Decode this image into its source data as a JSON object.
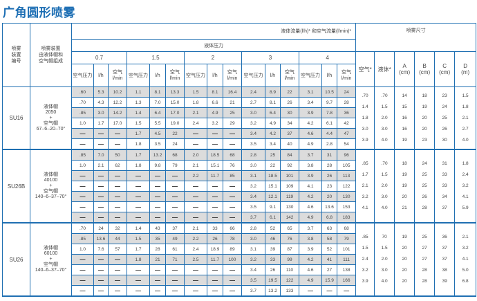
{
  "title": "广角圆形喷雾",
  "headers": {
    "model": "喷雾\n装置\n编号",
    "composition": "喷雾装置\n由液体帽和\n空气帽组成",
    "flow": "液体流量(l/h)* 和空气流量(l/min)*",
    "liquid_pressure": "液体压力",
    "pressures": [
      "0.7",
      "1.5",
      "2",
      "3",
      "4"
    ],
    "sub": [
      "空气压力",
      "l/h",
      "空气\nl/min"
    ],
    "spray_size": "喷雾尺寸",
    "size_cols": [
      "空气*",
      "液体*",
      "A\n(cm)",
      "B\n(cm)",
      "C\n(cm)",
      "D\n(m)"
    ]
  },
  "groups": [
    {
      "model": "SU16",
      "composition": [
        "液体帽",
        "2050",
        "+",
        "空气帽",
        "67–6–20–70°"
      ],
      "rows": [
        [
          ".60",
          "5.3",
          "10.2",
          "1.1",
          "8.1",
          "13.3",
          "1.5",
          "8.1",
          "16.4",
          "2.4",
          "8.9",
          "22",
          "3.1",
          "10.5",
          "24"
        ],
        [
          ".70",
          "4.3",
          "12.2",
          "1.3",
          "7.0",
          "15.0",
          "1.8",
          "6.6",
          "21",
          "2.7",
          "8.1",
          "26",
          "3.4",
          "9.7",
          "28"
        ],
        [
          ".85",
          "3.0",
          "14.2",
          "1.4",
          "6.4",
          "17.0",
          "2.1",
          "4.9",
          "25",
          "3.0",
          "6.4",
          "30",
          "3.9",
          "7.8",
          "36"
        ],
        [
          "1.0",
          "1.7",
          "17.0",
          "1.5",
          "5.5",
          "19.0",
          "2.4",
          "3.2",
          "29",
          "3.2",
          "4.9",
          "34",
          "4.2",
          "6.1",
          "42"
        ],
        [
          "—",
          "—",
          "—",
          "1.7",
          "4.5",
          "22",
          "—",
          "—",
          "—",
          "3.4",
          "4.2",
          "37",
          "4.6",
          "4.4",
          "47"
        ],
        [
          "—",
          "—",
          "—",
          "1.8",
          "3.5",
          "24",
          "—",
          "—",
          "—",
          "3.5",
          "3.4",
          "40",
          "4.9",
          "2.8",
          "54"
        ]
      ],
      "sizes": [
        [
          ".70",
          ".70",
          "14",
          "18",
          "23",
          "1.5"
        ],
        [
          "1.4",
          "1.5",
          "15",
          "19",
          "24",
          "1.8"
        ],
        [
          "1.8",
          "2.0",
          "16",
          "20",
          "25",
          "2.1"
        ],
        [
          "3.0",
          "3.0",
          "16",
          "20",
          "26",
          "2.7"
        ],
        [
          "3.9",
          "4.0",
          "19",
          "23",
          "30",
          "4.0"
        ]
      ]
    },
    {
      "model": "SU26B",
      "composition": [
        "液体帽",
        "40100",
        "+",
        "空气帽",
        "140–6–37–70°"
      ],
      "rows": [
        [
          ".85",
          "7.0",
          "50",
          "1.7",
          "13.2",
          "68",
          "2.0",
          "18.5",
          "68",
          "2.8",
          "25",
          "84",
          "3.7",
          "31",
          "96"
        ],
        [
          "1.0",
          "2.1",
          "62",
          "1.8",
          "9.8",
          "79",
          "2.1",
          "15.1",
          "76",
          "3.0",
          "22",
          "92",
          "3.8",
          "28",
          "105"
        ],
        [
          "—",
          "—",
          "—",
          "—",
          "—",
          "—",
          "2.2",
          "11.7",
          "85",
          "3.1",
          "18.5",
          "101",
          "3.9",
          "26",
          "113"
        ],
        [
          "—",
          "—",
          "—",
          "—",
          "—",
          "—",
          "—",
          "—",
          "—",
          "3.2",
          "15.1",
          "109",
          "4.1",
          "23",
          "122"
        ],
        [
          "—",
          "—",
          "—",
          "—",
          "—",
          "—",
          "—",
          "—",
          "—",
          "3.4",
          "12.1",
          "119",
          "4.2",
          "20",
          "130"
        ],
        [
          "—",
          "—",
          "—",
          "—",
          "—",
          "—",
          "—",
          "—",
          "—",
          "3.5",
          "9.1",
          "130",
          "4.6",
          "13.6",
          "153"
        ],
        [
          "—",
          "—",
          "—",
          "—",
          "—",
          "—",
          "—",
          "—",
          "—",
          "3.7",
          "6.1",
          "142",
          "4.9",
          "6.8",
          "183"
        ]
      ],
      "sizes": [
        [
          ".85",
          ".70",
          "18",
          "24",
          "31",
          "1.8"
        ],
        [
          "1.7",
          "1.5",
          "19",
          "25",
          "33",
          "2.4"
        ],
        [
          "2.1",
          "2.0",
          "19",
          "25",
          "33",
          "3.2"
        ],
        [
          "3.2",
          "3.0",
          "20",
          "26",
          "34",
          "4.1"
        ],
        [
          "4.1",
          "4.0",
          "21",
          "28",
          "37",
          "5.9"
        ]
      ]
    },
    {
      "model": "SU26",
      "composition": [
        "液体帽",
        "60100",
        "+",
        "空气帽",
        "140–6–37–70°"
      ],
      "rows": [
        [
          ".70",
          "24",
          "32",
          "1.4",
          "43",
          "37",
          "2.1",
          "33",
          "66",
          "2.8",
          "52",
          "65",
          "3.7",
          "63",
          "68"
        ],
        [
          ".85",
          "13.6",
          "44",
          "1.5",
          "35",
          "49",
          "2.2",
          "26",
          "78",
          "3.0",
          "46",
          "76",
          "3.8",
          "58",
          "79"
        ],
        [
          "1.0",
          "7.6",
          "57",
          "1.7",
          "28",
          "61",
          "2.4",
          "18.9",
          "89",
          "3.1",
          "39",
          "87",
          "3.9",
          "52",
          "101"
        ],
        [
          "—",
          "—",
          "—",
          "1.8",
          "21",
          "71",
          "2.5",
          "11.7",
          "100",
          "3.2",
          "33",
          "99",
          "4.2",
          "41",
          "111"
        ],
        [
          "—",
          "—",
          "—",
          "—",
          "—",
          "—",
          "—",
          "—",
          "—",
          "3.4",
          "26",
          "110",
          "4.6",
          "27",
          "138"
        ],
        [
          "—",
          "—",
          "—",
          "—",
          "—",
          "—",
          "—",
          "—",
          "—",
          "3.5",
          "19.5",
          "122",
          "4.9",
          "15.9",
          "166"
        ],
        [
          "—",
          "—",
          "—",
          "—",
          "—",
          "—",
          "—",
          "—",
          "—",
          "3.7",
          "13.2",
          "133",
          "—",
          "—",
          "—"
        ]
      ],
      "sizes": [
        [
          ".85",
          "70",
          "19",
          "25",
          "36",
          "2.1"
        ],
        [
          "1.5",
          "1.5",
          "20",
          "27",
          "37",
          "3.2"
        ],
        [
          "2.4",
          "2.0",
          "20",
          "27",
          "37",
          "4.1"
        ],
        [
          "3.2",
          "3.0",
          "20",
          "28",
          "38",
          "5.0"
        ],
        [
          "3.9",
          "4.0",
          "20",
          "28",
          "39",
          "6.8"
        ]
      ]
    }
  ],
  "colors": {
    "border": "#1f6fb2",
    "title": "#1b6db3",
    "shade": "#dcdcdc"
  }
}
